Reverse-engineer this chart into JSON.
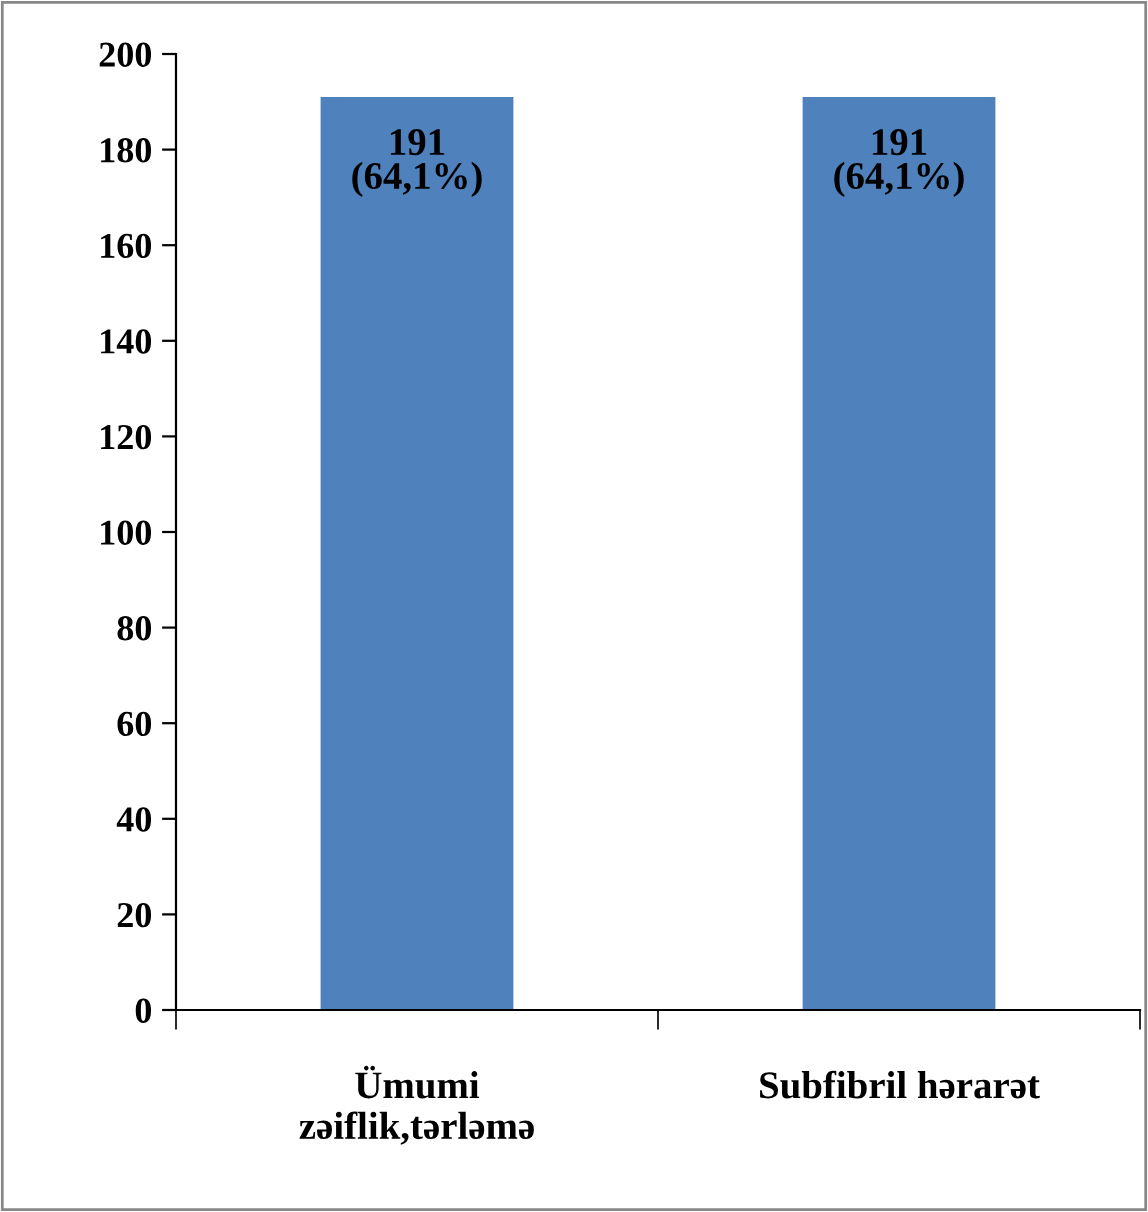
{
  "chart_data": {
    "type": "bar",
    "categories": [
      "Ümumi zəiflik,tərləmə",
      "Subfibril hərarət"
    ],
    "values": [
      191,
      191
    ],
    "color": "#4f81bd",
    "value_labels": [
      "191 (64,1%)",
      "191 (64,1%)"
    ],
    "ylim": [
      0,
      200
    ],
    "yticks": [
      0,
      20,
      40,
      60,
      80,
      100,
      120,
      140,
      160,
      180,
      200
    ],
    "grid": false,
    "legend": false
  }
}
